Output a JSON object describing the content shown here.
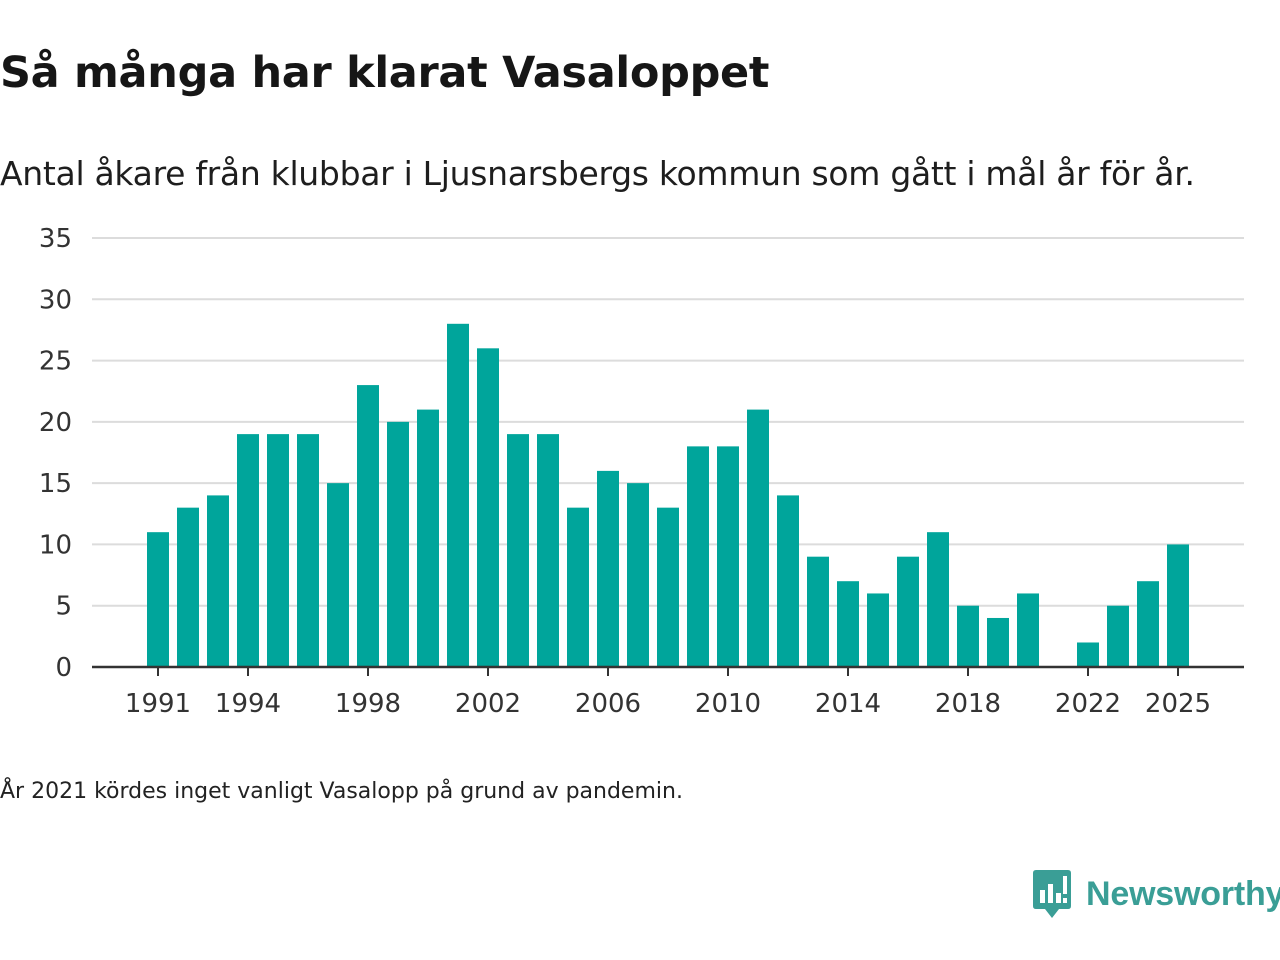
{
  "header": {
    "title": "Så många har klarat Vasaloppet",
    "subtitle": "Antal åkare från klubbar i Ljusnarsbergs kommun som gått i mål år för år."
  },
  "footer": {
    "note": "År 2021 kördes inget vanligt Vasalopp på grund av pandemin.",
    "brand": "Newsworthy"
  },
  "colors": {
    "bar": "#00a59b",
    "grid": "#dcdcdc",
    "axis": "#333333",
    "brand": "#3a9e96"
  },
  "chart_data": {
    "type": "bar",
    "title": "Så många har klarat Vasaloppet",
    "subtitle": "Antal åkare från klubbar i Ljusnarsbergs kommun som gått i mål år för år.",
    "xlabel": "",
    "ylabel": "",
    "categories": [
      1991,
      1992,
      1993,
      1994,
      1995,
      1996,
      1997,
      1998,
      1999,
      2000,
      2001,
      2002,
      2003,
      2004,
      2005,
      2006,
      2007,
      2008,
      2009,
      2010,
      2011,
      2012,
      2013,
      2014,
      2015,
      2016,
      2017,
      2018,
      2019,
      2020,
      2021,
      2022,
      2023,
      2024,
      2025
    ],
    "values": [
      11,
      13,
      14,
      19,
      19,
      19,
      15,
      23,
      20,
      21,
      28,
      26,
      19,
      19,
      13,
      16,
      15,
      13,
      18,
      18,
      21,
      14,
      9,
      7,
      6,
      9,
      11,
      5,
      4,
      6,
      null,
      2,
      5,
      7,
      10
    ],
    "x_tick_labels": [
      "1991",
      "1994",
      "1998",
      "2002",
      "2006",
      "2010",
      "2014",
      "2018",
      "2022",
      "2025"
    ],
    "y_ticks": [
      0,
      5,
      10,
      15,
      20,
      25,
      30,
      35
    ],
    "ylim": [
      0,
      35
    ],
    "grid": true,
    "legend": "none"
  }
}
